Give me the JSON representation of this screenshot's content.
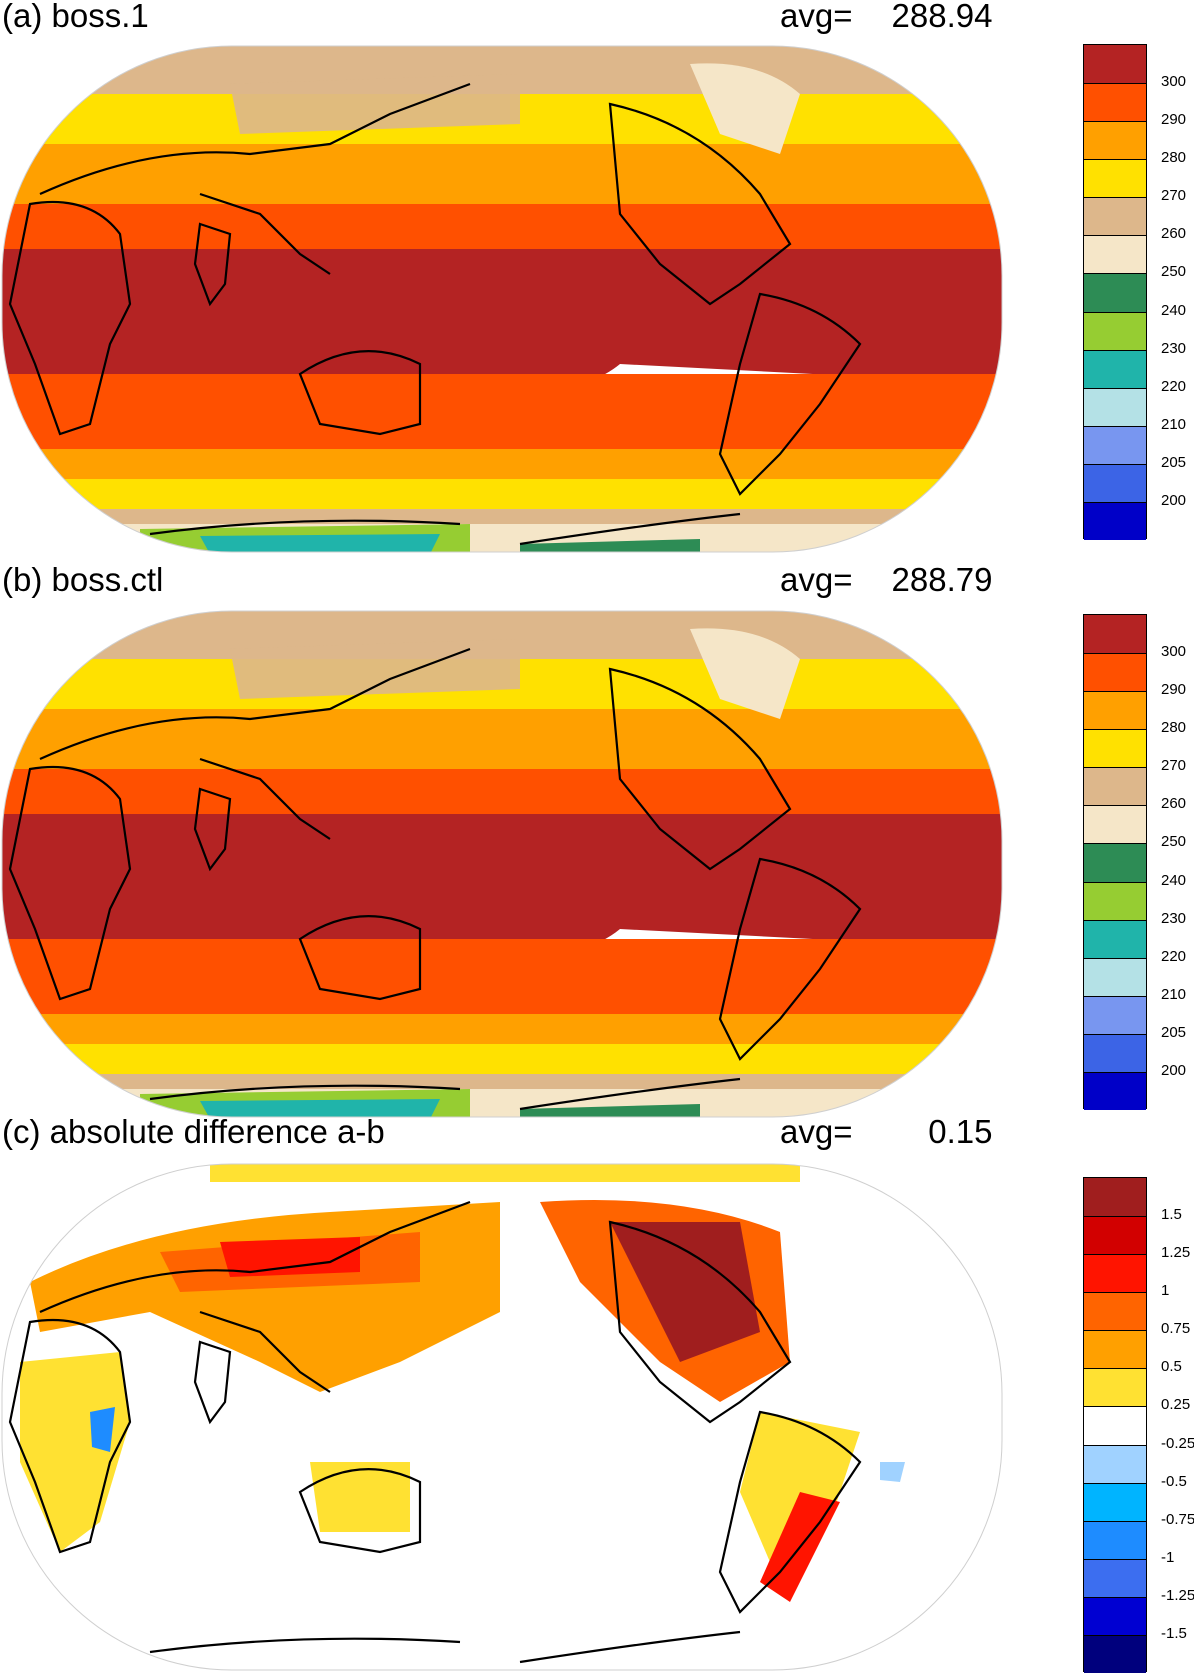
{
  "panels": [
    {
      "title": "(a) boss.1",
      "avg_label": "avg=",
      "avg_value": "288.94",
      "colorbar": {
        "colors": [
          "#0000c8",
          "#3c64e6",
          "#7896f0",
          "#b4e1e6",
          "#20b4aa",
          "#96cd32",
          "#2d8c55",
          "#f5e6c8",
          "#ddb78b",
          "#ffe100",
          "#ffa000",
          "#ff5000",
          "#b42323"
        ],
        "ticks": [
          "200",
          "205",
          "210",
          "220",
          "230",
          "240",
          "250",
          "260",
          "270",
          "280",
          "290",
          "300"
        ]
      }
    },
    {
      "title": "(b) boss.ctl",
      "avg_label": "avg=",
      "avg_value": "288.79",
      "colorbar": {
        "colors": [
          "#0000c8",
          "#3c64e6",
          "#7896f0",
          "#b4e1e6",
          "#20b4aa",
          "#96cd32",
          "#2d8c55",
          "#f5e6c8",
          "#ddb78b",
          "#ffe100",
          "#ffa000",
          "#ff5000",
          "#b42323"
        ],
        "ticks": [
          "200",
          "205",
          "210",
          "220",
          "230",
          "240",
          "250",
          "260",
          "270",
          "280",
          "290",
          "300"
        ]
      }
    },
    {
      "title": "(c) absolute difference a-b",
      "avg_label": "avg=",
      "avg_value": "0.15",
      "colorbar": {
        "colors": [
          "#00007d",
          "#0000d2",
          "#3c6ef0",
          "#1e8cff",
          "#00b4ff",
          "#a0d2ff",
          "#ffffff",
          "#ffe132",
          "#ffa000",
          "#ff6400",
          "#ff1400",
          "#d20000",
          "#a01e1e"
        ],
        "ticks": [
          "-1.5",
          "-1.25",
          "-1",
          "-0.75",
          "-0.5",
          "-0.25",
          "0.25",
          "0.5",
          "0.75",
          "1",
          "1.25",
          "1.5"
        ]
      }
    }
  ]
}
